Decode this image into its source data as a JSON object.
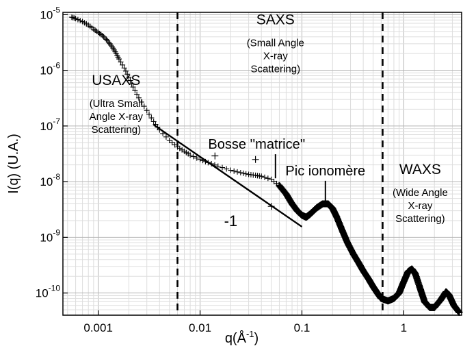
{
  "chart_data": {
    "type": "scatter",
    "xscale": "log",
    "yscale": "log",
    "xlim": [
      0.00045,
      3.7
    ],
    "ylim": [
      4e-11,
      1.1e-05
    ],
    "xlabel": "q(Å",
    "xlabel_sup": "-1",
    "xlabel_tail": ")",
    "ylabel": "I(q) (U.A.)",
    "grid": true,
    "x_ticks": [
      {
        "value": 0.001,
        "label": "0.001"
      },
      {
        "value": 0.01,
        "label": "0.01"
      },
      {
        "value": 0.1,
        "label": "0.1"
      },
      {
        "value": 1,
        "label": "1"
      }
    ],
    "y_ticks": [
      {
        "value": 1e-10,
        "base": "10",
        "exp": "-10"
      },
      {
        "value": 1e-09,
        "base": "10",
        "exp": "-9"
      },
      {
        "value": 1e-08,
        "base": "10",
        "exp": "-8"
      },
      {
        "value": 1e-07,
        "base": "10",
        "exp": "-7"
      },
      {
        "value": 1e-06,
        "base": "10",
        "exp": "-6"
      },
      {
        "value": 1e-05,
        "base": "10",
        "exp": "-5"
      }
    ],
    "series": [
      {
        "marker": "+",
        "color": "#000000",
        "points": [
          [
            0.00055,
            9e-06
          ],
          [
            0.0006,
            8.5e-06
          ],
          [
            0.0007,
            7.5e-06
          ],
          [
            0.0008,
            6.5e-06
          ],
          [
            0.0009,
            5.5e-06
          ],
          [
            0.001,
            4.8e-06
          ],
          [
            0.0011,
            4.2e-06
          ],
          [
            0.0012,
            3.6e-06
          ],
          [
            0.0013,
            3e-06
          ],
          [
            0.0014,
            2.5e-06
          ],
          [
            0.0015,
            2e-06
          ],
          [
            0.0016,
            1.6e-06
          ],
          [
            0.0018,
            1.1e-06
          ],
          [
            0.002,
            7.5e-07
          ],
          [
            0.0022,
            5e-07
          ],
          [
            0.0025,
            3.2e-07
          ],
          [
            0.003,
            1.9e-07
          ],
          [
            0.0035,
            1.2e-07
          ],
          [
            0.004,
            8.5e-08
          ],
          [
            0.005,
            5.5e-08
          ],
          [
            0.006,
            4.2e-08
          ],
          [
            0.007,
            3.5e-08
          ],
          [
            0.008,
            3e-08
          ],
          [
            0.01,
            2.5e-08
          ],
          [
            0.012,
            2.2e-08
          ],
          [
            0.015,
            1.9e-08
          ],
          [
            0.02,
            1.6e-08
          ],
          [
            0.025,
            1.45e-08
          ],
          [
            0.03,
            1.35e-08
          ],
          [
            0.035,
            1.3e-08
          ],
          [
            0.04,
            1.25e-08
          ],
          [
            0.05,
            1.1e-08
          ],
          [
            0.06,
            8.5e-09
          ],
          [
            0.07,
            6e-09
          ],
          [
            0.08,
            4e-09
          ],
          [
            0.09,
            3e-09
          ],
          [
            0.1,
            2.5e-09
          ],
          [
            0.11,
            2.3e-09
          ],
          [
            0.12,
            2.6e-09
          ],
          [
            0.14,
            3.4e-09
          ],
          [
            0.16,
            4e-09
          ],
          [
            0.18,
            4e-09
          ],
          [
            0.2,
            3.3e-09
          ],
          [
            0.22,
            2.3e-09
          ],
          [
            0.25,
            1.3e-09
          ],
          [
            0.28,
            8e-10
          ],
          [
            0.32,
            5e-10
          ],
          [
            0.36,
            3.5e-10
          ],
          [
            0.4,
            2.5e-10
          ],
          [
            0.45,
            1.8e-10
          ],
          [
            0.5,
            1.3e-10
          ],
          [
            0.55,
            1e-10
          ],
          [
            0.6,
            8e-11
          ],
          [
            0.7,
            7.2e-11
          ],
          [
            0.8,
            8e-11
          ],
          [
            0.9,
            1e-10
          ],
          [
            1.0,
            1.6e-10
          ],
          [
            1.1,
            2.4e-10
          ],
          [
            1.2,
            2.7e-10
          ],
          [
            1.3,
            2.2e-10
          ],
          [
            1.45,
            1.2e-10
          ],
          [
            1.6,
            7e-11
          ],
          [
            1.8,
            5.5e-11
          ],
          [
            2.0,
            5.5e-11
          ],
          [
            2.3,
            7.5e-11
          ],
          [
            2.6,
            1.05e-10
          ],
          [
            2.8,
            9e-11
          ],
          [
            3.1,
            6e-11
          ],
          [
            3.5,
            4.5e-11
          ]
        ]
      }
    ],
    "scattered_points": [
      [
        0.014,
        2.9e-08
      ],
      [
        0.035,
        2.5e-08
      ],
      [
        0.05,
        3.6e-09
      ]
    ],
    "boundaries": [
      0.006,
      0.62
    ],
    "slope_line": {
      "from": [
        0.0035,
        1.05e-07
      ],
      "to": [
        0.1,
        1.55e-09
      ],
      "label": "-1",
      "label_at": [
        0.02,
        1.6e-09
      ]
    },
    "regions": [
      {
        "name": "USAXS",
        "lines": [
          "(Ultra Small",
          "Angle X-ray",
          "Scattering)"
        ],
        "at": [
          0.0015,
          2.2e-07
        ]
      },
      {
        "name": "SAXS",
        "lines": [
          "(Small Angle",
          "X-ray",
          "Scattering)"
        ],
        "at": [
          0.055,
          2.7e-06
        ]
      },
      {
        "name": "WAXS",
        "lines": [
          "(Wide Angle",
          "X-ray",
          "Scattering)"
        ],
        "at": [
          1.45,
          5.5e-09
        ]
      }
    ],
    "annotations": [
      {
        "text": "Bosse ''matrice''",
        "at": [
          0.036,
          3.9e-08
        ],
        "pointer_to": [
          0.055,
          1.15e-08
        ]
      },
      {
        "text": "Pic ionomère",
        "at": [
          0.17,
          1.3e-08
        ],
        "pointer_to": [
          0.17,
          4.1e-09
        ]
      }
    ]
  }
}
